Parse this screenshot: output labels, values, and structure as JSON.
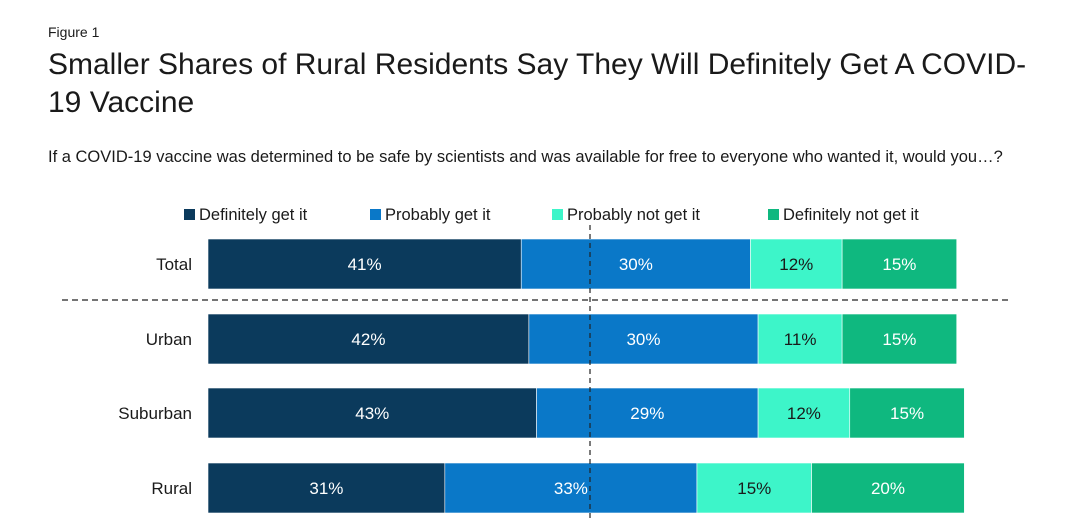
{
  "figure_label": "Figure 1",
  "title": "Smaller Shares of Rural Residents Say They Will Definitely Get A COVID-19 Vaccine",
  "subtitle": "If a COVID-19 vaccine was determined to be safe by scientists and was available for free to everyone who wanted it, would you…?",
  "colors": {
    "definitely_get": "#0b3a5c",
    "probably_get": "#0a78c8",
    "probably_not": "#3df5c9",
    "definitely_not": "#0fb87f"
  },
  "chart_data": {
    "type": "bar",
    "orientation": "horizontal-stacked",
    "categories": [
      "Total",
      "Urban",
      "Suburban",
      "Rural"
    ],
    "series": [
      {
        "name": "Definitely get it",
        "values": [
          41,
          42,
          43,
          31
        ],
        "labels": [
          "41%",
          "42%",
          "43%",
          "31%"
        ]
      },
      {
        "name": "Probably get it",
        "values": [
          30,
          30,
          29,
          33
        ],
        "labels": [
          "30%",
          "30%",
          "29%",
          "33%"
        ]
      },
      {
        "name": "Probably not get it",
        "values": [
          12,
          11,
          12,
          15
        ],
        "labels": [
          "12%",
          "11%",
          "12%",
          "15%"
        ]
      },
      {
        "name": "Definitely not get it",
        "values": [
          15,
          15,
          15,
          20
        ],
        "labels": [
          "15%",
          "15%",
          "15%",
          "20%"
        ]
      }
    ],
    "legend_position": "top",
    "reference_line": 50
  }
}
